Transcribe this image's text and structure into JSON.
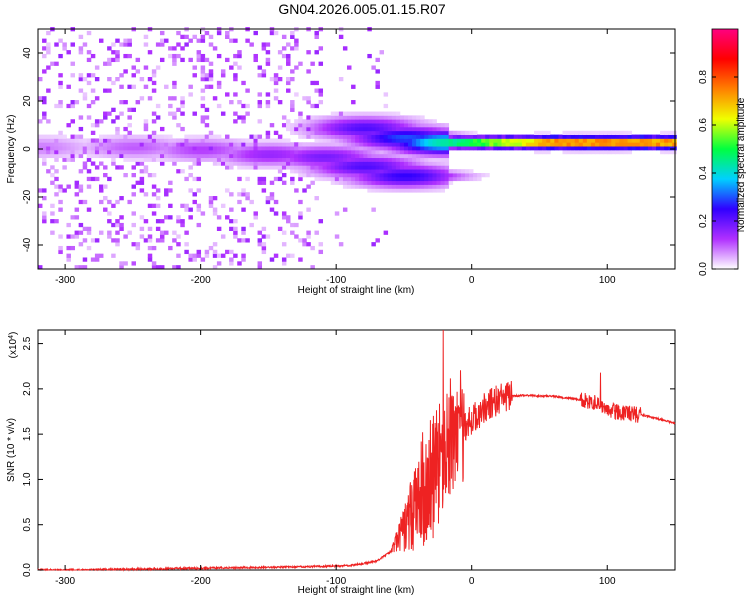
{
  "title": "GN04.2026.005.01.15.R07",
  "chart_data": [
    {
      "type": "heatmap",
      "xlabel": "Height of straight line (km)",
      "ylabel": "Frequency (Hz)",
      "xlim": [
        -320,
        150
      ],
      "ylim": [
        -50,
        50
      ],
      "xticks": [
        -300,
        -200,
        -100,
        0,
        100
      ],
      "yticks": [
        -40,
        -20,
        0,
        20,
        40
      ],
      "colorbar": {
        "label": "Normalized spectral amplitude",
        "range": [
          0,
          1
        ],
        "ticks": [
          0.0,
          0.2,
          0.4,
          0.6,
          0.8
        ],
        "colormap": [
          "#ffffff",
          "#b030ff",
          "#3000ff",
          "#00d0ff",
          "#00ff40",
          "#f0ff00",
          "#ff8000",
          "#ff0000",
          "#ff0080"
        ]
      },
      "ridge": [
        {
          "x": -320,
          "f": 0,
          "amp": 0.08
        },
        {
          "x": -250,
          "f": 0,
          "amp": 0.1
        },
        {
          "x": -200,
          "f": -1,
          "amp": 0.12
        },
        {
          "x": -150,
          "f": -3,
          "amp": 0.15
        },
        {
          "x": -110,
          "f": -4,
          "amp": 0.18
        },
        {
          "x": -80,
          "f": -8,
          "amp": 0.22
        },
        {
          "x": -80,
          "f": 8,
          "amp": 0.22
        },
        {
          "x": -50,
          "f": 4,
          "amp": 0.3
        },
        {
          "x": -50,
          "f": -12,
          "amp": 0.25
        },
        {
          "x": -20,
          "f": 2,
          "amp": 0.45
        },
        {
          "x": 0,
          "f": 2,
          "amp": 0.55
        },
        {
          "x": 50,
          "f": 2,
          "amp": 0.7
        },
        {
          "x": 80,
          "f": 2,
          "amp": 0.8
        },
        {
          "x": 100,
          "f": 2,
          "amp": 0.8
        },
        {
          "x": 150,
          "f": 2,
          "amp": 0.75
        }
      ]
    },
    {
      "type": "line",
      "xlabel": "Height of straight line (km)",
      "ylabel": "SNR (10 * v/v)",
      "yscale_label": "(x10^4)",
      "xlim": [
        -320,
        150
      ],
      "ylim": [
        0,
        2.65
      ],
      "xticks": [
        -300,
        -200,
        -100,
        0,
        100
      ],
      "yticks": [
        0.0,
        0.5,
        1.0,
        1.5,
        2.0,
        2.5
      ],
      "color": "#ee2222",
      "series": [
        {
          "x": [
            -320,
            -300,
            -250,
            -200,
            -150,
            -110,
            -90,
            -80,
            -70,
            -60,
            -50,
            -45,
            -40,
            -35,
            -30,
            -25,
            -20,
            -15,
            -10,
            -5,
            0,
            10,
            20,
            30,
            40,
            50,
            60,
            70,
            80,
            90,
            95,
            100,
            110,
            120,
            130,
            140,
            150
          ],
          "values": [
            0.0,
            0.0,
            0.01,
            0.02,
            0.03,
            0.04,
            0.05,
            0.07,
            0.1,
            0.2,
            0.45,
            0.6,
            0.75,
            0.9,
            1.0,
            1.1,
            1.3,
            1.45,
            1.55,
            1.6,
            1.65,
            1.8,
            1.88,
            1.92,
            1.93,
            1.92,
            1.92,
            1.9,
            1.88,
            1.85,
            1.8,
            1.76,
            1.74,
            1.72,
            1.7,
            1.66,
            1.62
          ]
        }
      ]
    }
  ]
}
